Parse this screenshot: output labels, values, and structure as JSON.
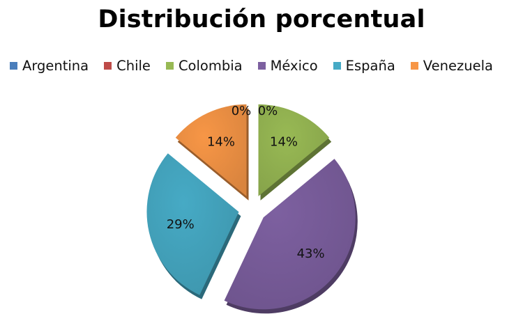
{
  "chart_data": {
    "type": "pie",
    "title": "Distribución porcentual",
    "legend_position": "top",
    "exploded": true,
    "slices": [
      {
        "name": "Argentina",
        "value": 0,
        "label": "0%",
        "color": "#4a7ebb"
      },
      {
        "name": "Chile",
        "value": 0,
        "label": "0%",
        "color": "#be4b48"
      },
      {
        "name": "Colombia",
        "value": 14,
        "label": "14%",
        "color": "#98b954"
      },
      {
        "name": "México",
        "value": 43,
        "label": "43%",
        "color": "#7d60a0"
      },
      {
        "name": "España",
        "value": 29,
        "label": "29%",
        "color": "#46aac5"
      },
      {
        "name": "Venezuela",
        "value": 14,
        "label": "14%",
        "color": "#f79646"
      }
    ]
  }
}
